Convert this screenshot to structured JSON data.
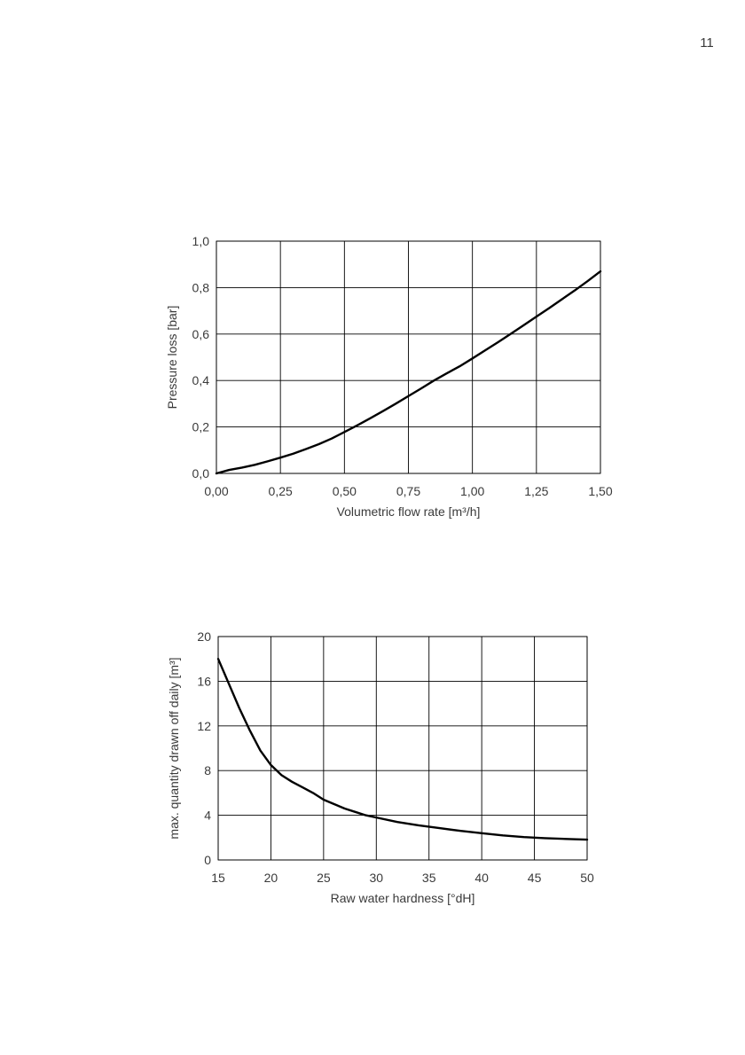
{
  "page_number": "11",
  "chart_data": [
    {
      "type": "line",
      "title": "",
      "xlabel": "Volumetric flow rate [m³/h]",
      "ylabel": "Pressure loss [bar]",
      "xlim": [
        0,
        1.5
      ],
      "ylim": [
        0,
        1.0
      ],
      "xticks": [
        0,
        0.25,
        0.5,
        0.75,
        1.0,
        1.25,
        1.5
      ],
      "yticks": [
        0,
        0.2,
        0.4,
        0.6,
        0.8,
        1.0
      ],
      "xtick_labels": [
        "0,00",
        "0,25",
        "0,50",
        "0,75",
        "1,00",
        "1,25",
        "1,50"
      ],
      "ytick_labels": [
        "0,0",
        "0,2",
        "0,4",
        "0,6",
        "0,8",
        "1,0"
      ],
      "grid": true,
      "series": [
        {
          "x": [
            0,
            0.05,
            0.1,
            0.15,
            0.2,
            0.25,
            0.3,
            0.35,
            0.4,
            0.45,
            0.5,
            0.55,
            0.6,
            0.65,
            0.7,
            0.75,
            0.8,
            0.85,
            0.9,
            0.95,
            1.0,
            1.05,
            1.1,
            1.15,
            1.2,
            1.25,
            1.3,
            1.35,
            1.4,
            1.45,
            1.5
          ],
          "y": [
            0,
            0.015,
            0.025,
            0.037,
            0.052,
            0.068,
            0.085,
            0.105,
            0.126,
            0.15,
            0.178,
            0.207,
            0.237,
            0.268,
            0.3,
            0.333,
            0.366,
            0.4,
            0.431,
            0.461,
            0.495,
            0.53,
            0.565,
            0.601,
            0.638,
            0.675,
            0.712,
            0.75,
            0.788,
            0.828,
            0.87
          ]
        }
      ]
    },
    {
      "type": "line",
      "title": "",
      "xlabel": "Raw water hardness [°dH]",
      "ylabel": "max. quantity drawn off daily [m³]",
      "xlim": [
        15,
        50
      ],
      "ylim": [
        0,
        20
      ],
      "xticks": [
        15,
        20,
        25,
        30,
        35,
        40,
        45,
        50
      ],
      "yticks": [
        0,
        4,
        8,
        12,
        16,
        20
      ],
      "xtick_labels": [
        "15",
        "20",
        "25",
        "30",
        "35",
        "40",
        "45",
        "50"
      ],
      "ytick_labels": [
        "0",
        "4",
        "8",
        "12",
        "16",
        "20"
      ],
      "grid": true,
      "series": [
        {
          "x": [
            15,
            16,
            17,
            18,
            19,
            20,
            21,
            22,
            23,
            24,
            25,
            26,
            27,
            28,
            29,
            30,
            32,
            34,
            36,
            38,
            40,
            42,
            44,
            46,
            48,
            50
          ],
          "y": [
            18.0,
            15.8,
            13.6,
            11.6,
            9.8,
            8.5,
            7.6,
            7.0,
            6.5,
            6.0,
            5.4,
            5.0,
            4.6,
            4.3,
            4.0,
            3.8,
            3.4,
            3.1,
            2.85,
            2.6,
            2.4,
            2.2,
            2.05,
            1.95,
            1.88,
            1.82
          ]
        }
      ]
    }
  ]
}
